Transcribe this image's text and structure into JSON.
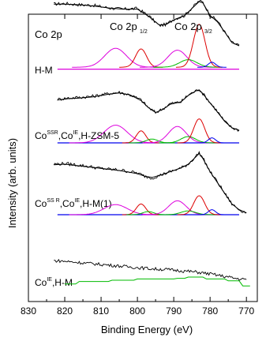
{
  "chart_data": {
    "type": "line",
    "title": "",
    "xlabel": "Binding Energy (eV)",
    "ylabel": "Intensity (arb. units)",
    "xlim": [
      830,
      767
    ],
    "x_reversed": true,
    "x_ticks": [
      830,
      820,
      810,
      800,
      790,
      780,
      770
    ],
    "y_ticks_shown": false,
    "grid": false,
    "annotations": {
      "element": "Co 2p",
      "peak_1": {
        "main": "Co 2p",
        "sub": "1/2"
      },
      "peak_2": {
        "main": "Co 2p",
        "sub": "3/2"
      }
    },
    "samples": [
      {
        "label_parts": [
          {
            "t": "Co",
            "sup": false
          },
          {
            "t": "IE",
            "sup": true
          },
          {
            "t": ",H-M",
            "sup": false
          }
        ],
        "offset": 3,
        "baseline": 0.03,
        "experimental": [
          [
            823,
            1.06
          ],
          [
            820,
            1.07
          ],
          [
            816,
            1.05
          ],
          [
            812,
            1.04
          ],
          [
            808,
            1.0
          ],
          [
            804,
            0.98
          ],
          [
            800,
            0.99
          ],
          [
            797,
            0.88
          ],
          [
            794,
            0.72
          ],
          [
            792,
            0.74
          ],
          [
            790,
            0.82
          ],
          [
            787,
            0.88
          ],
          [
            785,
            1.0
          ],
          [
            783,
            1.11
          ],
          [
            782,
            1.09
          ],
          [
            780,
            0.88
          ],
          [
            778,
            0.8
          ],
          [
            776,
            0.62
          ],
          [
            774,
            0.45
          ],
          [
            772,
            0.41
          ]
        ],
        "fit": [
          [
            823,
            1.06
          ],
          [
            820,
            1.06
          ],
          [
            816,
            1.05
          ],
          [
            812,
            1.03
          ],
          [
            808,
            1.0
          ],
          [
            804,
            0.98
          ],
          [
            800,
            0.98
          ],
          [
            797,
            0.87
          ],
          [
            794,
            0.73
          ],
          [
            792,
            0.74
          ],
          [
            790,
            0.81
          ],
          [
            787,
            0.88
          ],
          [
            785,
            0.99
          ],
          [
            783,
            1.1
          ],
          [
            782,
            1.08
          ],
          [
            780,
            0.88
          ],
          [
            778,
            0.78
          ],
          [
            776,
            0.62
          ],
          [
            774,
            0.45
          ],
          [
            772,
            0.4
          ]
        ],
        "components": [
          {
            "color": "#dd00dd",
            "center": 806,
            "height": 0.3,
            "width": 3.0,
            "background": 0.06
          },
          {
            "color": "#dd0000",
            "center": 799,
            "height": 0.29,
            "width": 1.5,
            "background": 0.06
          },
          {
            "color": "#dd00dd",
            "center": 789,
            "height": 0.27,
            "width": 2.6,
            "background": 0.06
          },
          {
            "color": "#00bb00",
            "center": 786,
            "height": 0.12,
            "width": 2.4,
            "background": 0.06
          },
          {
            "color": "#dd0000",
            "center": 783,
            "height": 0.68,
            "width": 1.6,
            "background": 0.06
          },
          {
            "color": "#0000ee",
            "center": 779.5,
            "height": 0.08,
            "width": 1.0,
            "background": 0.06
          }
        ]
      },
      {
        "label_parts": [
          {
            "t": "Co",
            "sup": false
          },
          {
            "t": "SS R",
            "sup": true
          },
          {
            "t": ",Co",
            "sup": false
          },
          {
            "t": "IE",
            "sup": true
          },
          {
            "t": ",H-M(1)",
            "sup": false
          }
        ],
        "offset": 2,
        "baseline": 0.0,
        "experimental": [
          [
            822,
            0.69
          ],
          [
            819,
            0.71
          ],
          [
            816,
            0.72
          ],
          [
            812,
            0.74
          ],
          [
            808,
            0.78
          ],
          [
            805,
            0.8
          ],
          [
            802,
            0.76
          ],
          [
            799,
            0.68
          ],
          [
            797,
            0.56
          ],
          [
            795,
            0.48
          ],
          [
            793,
            0.54
          ],
          [
            791,
            0.62
          ],
          [
            788,
            0.65
          ],
          [
            786,
            0.76
          ],
          [
            784,
            0.82
          ],
          [
            783,
            0.85
          ],
          [
            782,
            0.78
          ],
          [
            780,
            0.64
          ],
          [
            778,
            0.5
          ],
          [
            776,
            0.34
          ],
          [
            774,
            0.24
          ],
          [
            772,
            0.2
          ]
        ],
        "fit": [
          [
            822,
            0.68
          ],
          [
            819,
            0.7
          ],
          [
            816,
            0.71
          ],
          [
            812,
            0.73
          ],
          [
            808,
            0.77
          ],
          [
            805,
            0.79
          ],
          [
            802,
            0.76
          ],
          [
            799,
            0.67
          ],
          [
            797,
            0.56
          ],
          [
            795,
            0.48
          ],
          [
            793,
            0.53
          ],
          [
            791,
            0.61
          ],
          [
            788,
            0.65
          ],
          [
            786,
            0.75
          ],
          [
            784,
            0.82
          ],
          [
            783,
            0.84
          ],
          [
            782,
            0.78
          ],
          [
            780,
            0.63
          ],
          [
            778,
            0.49
          ],
          [
            776,
            0.34
          ],
          [
            774,
            0.24
          ],
          [
            772,
            0.2
          ]
        ],
        "components": [
          {
            "color": "#dd00dd",
            "center": 806,
            "height": 0.28,
            "width": 3.2,
            "background": 0.0
          },
          {
            "color": "#dd0000",
            "center": 799,
            "height": 0.19,
            "width": 1.3,
            "background": 0.0
          },
          {
            "color": "#00bb00",
            "center": 796,
            "height": 0.06,
            "width": 1.6,
            "background": 0.0
          },
          {
            "color": "#dd00dd",
            "center": 789,
            "height": 0.26,
            "width": 2.4,
            "background": 0.0
          },
          {
            "color": "#00bb00",
            "center": 786,
            "height": 0.1,
            "width": 2.0,
            "background": 0.0
          },
          {
            "color": "#dd0000",
            "center": 783,
            "height": 0.38,
            "width": 1.5,
            "background": 0.0
          },
          {
            "color": "#0000ee",
            "center": 779.5,
            "height": 0.08,
            "width": 1.0,
            "background": 0.0
          }
        ]
      },
      {
        "label_parts": [
          {
            "t": "Co",
            "sup": false
          },
          {
            "t": "SSR",
            "sup": true
          },
          {
            "t": ",Co",
            "sup": false
          },
          {
            "t": "IE",
            "sup": true
          },
          {
            "t": ",H-ZSM-5",
            "sup": false
          }
        ],
        "offset": 1,
        "baseline": 0.0,
        "experimental": [
          [
            823,
            0.8
          ],
          [
            820,
            0.81
          ],
          [
            817,
            0.79
          ],
          [
            814,
            0.77
          ],
          [
            811,
            0.74
          ],
          [
            808,
            0.72
          ],
          [
            805,
            0.71
          ],
          [
            802,
            0.68
          ],
          [
            800,
            0.66
          ],
          [
            798,
            0.61
          ],
          [
            796,
            0.58
          ],
          [
            794,
            0.62
          ],
          [
            792,
            0.66
          ],
          [
            790,
            0.7
          ],
          [
            788,
            0.74
          ],
          [
            786,
            0.8
          ],
          [
            784,
            0.92
          ],
          [
            783,
            0.98
          ],
          [
            782,
            0.9
          ],
          [
            780,
            0.68
          ],
          [
            778,
            0.52
          ],
          [
            776,
            0.34
          ],
          [
            774,
            0.17
          ],
          [
            772,
            0.08
          ],
          [
            770,
            0.03
          ]
        ],
        "fit": [
          [
            823,
            0.79
          ],
          [
            820,
            0.8
          ],
          [
            817,
            0.78
          ],
          [
            814,
            0.76
          ],
          [
            811,
            0.74
          ],
          [
            808,
            0.72
          ],
          [
            805,
            0.7
          ],
          [
            802,
            0.67
          ],
          [
            800,
            0.65
          ],
          [
            798,
            0.61
          ],
          [
            796,
            0.59
          ],
          [
            794,
            0.62
          ],
          [
            792,
            0.66
          ],
          [
            790,
            0.7
          ],
          [
            788,
            0.74
          ],
          [
            786,
            0.8
          ],
          [
            784,
            0.91
          ],
          [
            783,
            0.97
          ],
          [
            782,
            0.89
          ],
          [
            780,
            0.68
          ],
          [
            778,
            0.51
          ],
          [
            776,
            0.34
          ],
          [
            774,
            0.17
          ],
          [
            772,
            0.08
          ],
          [
            770,
            0.03
          ]
        ],
        "components": [
          {
            "color": "#dd00dd",
            "center": 806,
            "height": 0.16,
            "width": 3.2,
            "background": 0.0
          },
          {
            "color": "#dd0000",
            "center": 799,
            "height": 0.17,
            "width": 1.3,
            "background": 0.0
          },
          {
            "color": "#00bb00",
            "center": 797,
            "height": 0.05,
            "width": 1.5,
            "background": 0.0
          },
          {
            "color": "#dd00dd",
            "center": 789,
            "height": 0.22,
            "width": 2.4,
            "background": 0.0
          },
          {
            "color": "#00bb00",
            "center": 786,
            "height": 0.06,
            "width": 2.0,
            "background": 0.0
          },
          {
            "color": "#dd0000",
            "center": 783,
            "height": 0.3,
            "width": 1.5,
            "background": 0.0
          },
          {
            "color": "#0000ee",
            "center": 779.5,
            "height": 0.08,
            "width": 1.0,
            "background": 0.0
          }
        ]
      },
      {
        "label_parts": [
          {
            "t": "H-M",
            "sup": false
          }
        ],
        "offset": 0,
        "baseline": 0.0,
        "experimental": [
          [
            823,
            0.41
          ],
          [
            820,
            0.4
          ],
          [
            816,
            0.38
          ],
          [
            812,
            0.36
          ],
          [
            808,
            0.34
          ],
          [
            804,
            0.32
          ],
          [
            800,
            0.3
          ],
          [
            796,
            0.28
          ],
          [
            792,
            0.27
          ],
          [
            788,
            0.25
          ],
          [
            784,
            0.23
          ],
          [
            780,
            0.2
          ],
          [
            776,
            0.16
          ],
          [
            772,
            0.12
          ],
          [
            770,
            0.11
          ]
        ],
        "fit": [],
        "components": [],
        "green_step": [
          [
            820,
            0.04
          ],
          [
            817,
            0.04
          ],
          [
            816,
            0.08
          ],
          [
            808,
            0.08
          ],
          [
            807,
            0.1
          ],
          [
            801,
            0.1
          ],
          [
            800,
            0.12
          ],
          [
            790,
            0.12
          ],
          [
            789,
            0.13
          ],
          [
            787,
            0.13
          ],
          [
            786,
            0.15
          ],
          [
            782,
            0.15
          ],
          [
            781,
            0.12
          ],
          [
            776,
            0.12
          ],
          [
            775,
            0.09
          ],
          [
            772,
            0.09
          ],
          [
            771,
            0.01
          ],
          [
            769,
            0.01
          ]
        ]
      }
    ]
  }
}
